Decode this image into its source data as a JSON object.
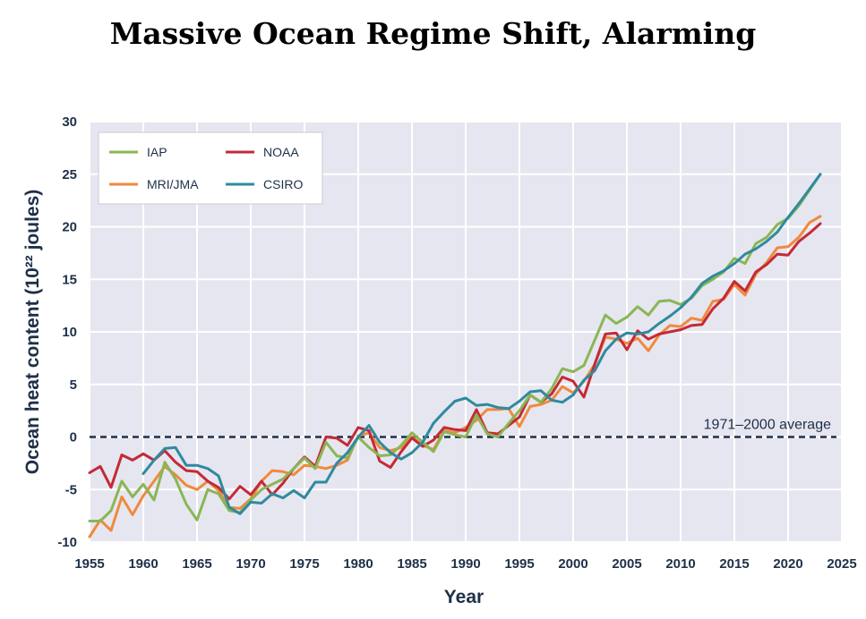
{
  "title": "Massive Ocean Regime Shift, Alarming",
  "chart_data": {
    "type": "line",
    "xlabel": "Year",
    "ylabel": "Ocean heat content (10²² joules)",
    "xlim": [
      1955,
      2025
    ],
    "ylim": [
      -10,
      30
    ],
    "xticks": [
      1955,
      1960,
      1965,
      1970,
      1975,
      1980,
      1985,
      1990,
      1995,
      2000,
      2005,
      2010,
      2015,
      2020,
      2025
    ],
    "yticks": [
      -10,
      -5,
      0,
      5,
      10,
      15,
      20,
      25,
      30
    ],
    "grid": true,
    "legend_position": "top-left",
    "reference_line": {
      "y": 0,
      "label": "1971–2000 average",
      "color": "#1e3048"
    },
    "series": [
      {
        "name": "IAP",
        "color": "#8ab654",
        "x": [
          1955,
          1956,
          1957,
          1958,
          1959,
          1960,
          1961,
          1962,
          1963,
          1964,
          1965,
          1966,
          1967,
          1968,
          1969,
          1970,
          1971,
          1972,
          1973,
          1974,
          1975,
          1976,
          1977,
          1978,
          1979,
          1980,
          1981,
          1982,
          1983,
          1984,
          1985,
          1986,
          1987,
          1988,
          1989,
          1990,
          1991,
          1992,
          1993,
          1994,
          1995,
          1996,
          1997,
          1998,
          1999,
          2000,
          2001,
          2002,
          2003,
          2004,
          2005,
          2006,
          2007,
          2008,
          2009,
          2010,
          2011,
          2012,
          2013,
          2014,
          2015,
          2016,
          2017,
          2018,
          2019,
          2020,
          2021,
          2022,
          2023
        ],
        "y": [
          -8.0,
          -8.0,
          -7.0,
          -4.2,
          -5.7,
          -4.5,
          -6.0,
          -2.4,
          -4.0,
          -6.4,
          -7.9,
          -5.0,
          -5.4,
          -7.0,
          -7.2,
          -6.0,
          -5.0,
          -4.5,
          -4.0,
          -3.0,
          -2.0,
          -3.0,
          -0.5,
          -1.8,
          -2.0,
          0.0,
          -1.0,
          -1.8,
          -1.7,
          -0.8,
          0.4,
          -0.5,
          -1.4,
          0.5,
          0.2,
          0.0,
          2.1,
          0.3,
          0.0,
          1.3,
          2.5,
          4.0,
          3.3,
          4.6,
          6.5,
          6.2,
          6.8,
          9.2,
          11.6,
          10.8,
          11.4,
          12.4,
          11.6,
          12.9,
          13.0,
          12.6,
          13.2,
          14.4,
          15.0,
          15.7,
          17.0,
          16.5,
          18.4,
          19.0,
          20.2,
          20.8,
          22.0,
          23.5,
          25.0
        ]
      },
      {
        "name": "MRI/JMA",
        "color": "#ef8a3e",
        "x": [
          1955,
          1956,
          1957,
          1958,
          1959,
          1960,
          1961,
          1962,
          1963,
          1964,
          1965,
          1966,
          1967,
          1968,
          1969,
          1970,
          1971,
          1972,
          1973,
          1974,
          1975,
          1976,
          1977,
          1978,
          1979,
          1980,
          1981,
          1982,
          1983,
          1984,
          1985,
          1986,
          1987,
          1988,
          1989,
          1990,
          1991,
          1992,
          1993,
          1994,
          1995,
          1996,
          1997,
          1998,
          1999,
          2000,
          2001,
          2002,
          2003,
          2004,
          2005,
          2006,
          2007,
          2008,
          2009,
          2010,
          2011,
          2012,
          2013,
          2014,
          2015,
          2016,
          2017,
          2018,
          2019,
          2020,
          2021,
          2022,
          2023
        ],
        "y": [
          -9.5,
          -7.9,
          -8.9,
          -5.7,
          -7.4,
          -5.6,
          -4.2,
          -2.8,
          -3.6,
          -4.6,
          -5.0,
          -4.2,
          -5.1,
          -6.7,
          -6.8,
          -5.9,
          -4.2,
          -3.2,
          -3.3,
          -3.6,
          -2.7,
          -2.8,
          -3.0,
          -2.7,
          -2.2,
          0.1,
          0.4,
          -1.0,
          -1.3,
          -1.0,
          0.0,
          -0.8,
          -1.2,
          0.6,
          0.4,
          0.9,
          1.6,
          2.6,
          2.6,
          2.7,
          1.0,
          2.9,
          3.1,
          3.5,
          4.8,
          4.2,
          5.3,
          6.9,
          9.5,
          9.3,
          8.9,
          9.4,
          8.2,
          9.7,
          10.6,
          10.5,
          11.3,
          11.1,
          12.9,
          13.1,
          14.5,
          13.5,
          15.5,
          16.6,
          18.0,
          18.1,
          19.0,
          20.4,
          21.0
        ]
      },
      {
        "name": "NOAA",
        "color": "#c42a36",
        "x": [
          1955,
          1956,
          1957,
          1958,
          1959,
          1960,
          1961,
          1962,
          1963,
          1964,
          1965,
          1966,
          1967,
          1968,
          1969,
          1970,
          1971,
          1972,
          1973,
          1974,
          1975,
          1976,
          1977,
          1978,
          1979,
          1980,
          1981,
          1982,
          1983,
          1984,
          1985,
          1986,
          1987,
          1988,
          1989,
          1990,
          1991,
          1992,
          1993,
          1994,
          1995,
          1996,
          1997,
          1998,
          1999,
          2000,
          2001,
          2002,
          2003,
          2004,
          2005,
          2006,
          2007,
          2008,
          2009,
          2010,
          2011,
          2012,
          2013,
          2014,
          2015,
          2016,
          2017,
          2018,
          2019,
          2020,
          2021,
          2022,
          2023
        ],
        "y": [
          -3.4,
          -2.8,
          -4.8,
          -1.7,
          -2.2,
          -1.6,
          -2.2,
          -1.3,
          -2.4,
          -3.2,
          -3.3,
          -4.2,
          -4.8,
          -5.9,
          -4.7,
          -5.5,
          -4.2,
          -5.5,
          -4.4,
          -3.0,
          -1.9,
          -2.8,
          0.0,
          -0.1,
          -0.8,
          0.9,
          0.6,
          -2.3,
          -2.9,
          -1.4,
          -0.1,
          -0.9,
          -0.3,
          0.9,
          0.7,
          0.6,
          2.6,
          0.4,
          0.3,
          1.1,
          1.9,
          4.0,
          3.3,
          4.1,
          5.7,
          5.3,
          3.8,
          6.9,
          9.8,
          9.9,
          8.3,
          10.1,
          9.3,
          9.8,
          10.0,
          10.2,
          10.6,
          10.7,
          12.2,
          13.2,
          14.8,
          13.9,
          15.7,
          16.4,
          17.4,
          17.3,
          18.6,
          19.4,
          20.3
        ]
      },
      {
        "name": "CSIRO",
        "color": "#2f8a9e",
        "x": [
          1960,
          1961,
          1962,
          1963,
          1964,
          1965,
          1966,
          1967,
          1968,
          1969,
          1970,
          1971,
          1972,
          1973,
          1974,
          1975,
          1976,
          1977,
          1978,
          1979,
          1980,
          1981,
          1982,
          1983,
          1984,
          1985,
          1986,
          1987,
          1988,
          1989,
          1990,
          1991,
          1992,
          1993,
          1994,
          1995,
          1996,
          1997,
          1998,
          1999,
          2000,
          2001,
          2002,
          2003,
          2004,
          2005,
          2006,
          2007,
          2008,
          2009,
          2010,
          2011,
          2012,
          2013,
          2014,
          2015,
          2016,
          2017,
          2018,
          2019,
          2020,
          2021,
          2022,
          2023
        ],
        "y": [
          -3.5,
          -2.2,
          -1.1,
          -1.0,
          -2.7,
          -2.7,
          -3.0,
          -3.7,
          -6.7,
          -7.3,
          -6.2,
          -6.3,
          -5.4,
          -5.8,
          -5.1,
          -5.8,
          -4.3,
          -4.3,
          -2.5,
          -1.5,
          0.0,
          1.1,
          -0.5,
          -1.5,
          -2.1,
          -1.5,
          -0.5,
          1.3,
          2.4,
          3.4,
          3.7,
          3.0,
          3.1,
          2.8,
          2.7,
          3.4,
          4.3,
          4.4,
          3.5,
          3.3,
          4.0,
          5.4,
          6.3,
          8.2,
          9.3,
          9.9,
          9.8,
          10.0,
          10.8,
          11.5,
          12.3,
          13.3,
          14.6,
          15.3,
          15.8,
          16.5,
          17.4,
          17.9,
          18.6,
          19.5,
          20.9,
          22.2,
          23.6,
          25.0
        ]
      }
    ]
  }
}
